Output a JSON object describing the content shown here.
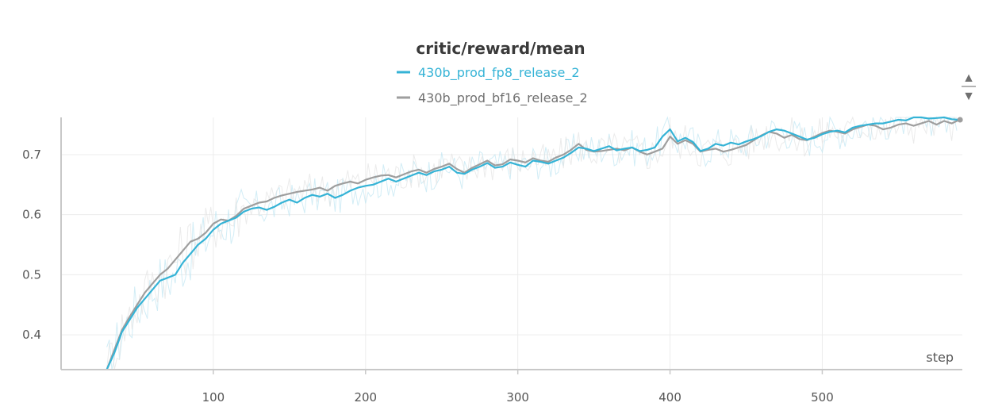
{
  "chart_data": {
    "type": "line",
    "title": "critic/reward/mean",
    "xlabel": "step",
    "ylabel": "",
    "xlim": [
      0,
      592
    ],
    "ylim": [
      0.342,
      0.762
    ],
    "xticks": [
      100,
      200,
      300,
      400,
      500
    ],
    "yticks": [
      0.4,
      0.5,
      0.6,
      0.7
    ],
    "grid": true,
    "legend_position": "top-center",
    "series": [
      {
        "name": "430b_prod_fp8_release_2",
        "color": "#35b3d6",
        "x": [
          30,
          35,
          40,
          45,
          50,
          55,
          60,
          65,
          70,
          75,
          80,
          85,
          90,
          95,
          100,
          105,
          110,
          115,
          120,
          125,
          130,
          135,
          140,
          145,
          150,
          155,
          160,
          165,
          170,
          175,
          180,
          185,
          190,
          195,
          200,
          205,
          210,
          215,
          220,
          225,
          230,
          235,
          240,
          245,
          250,
          255,
          260,
          265,
          270,
          275,
          280,
          285,
          290,
          295,
          300,
          305,
          310,
          315,
          320,
          325,
          330,
          335,
          340,
          345,
          350,
          355,
          360,
          365,
          370,
          375,
          380,
          385,
          390,
          395,
          400,
          405,
          410,
          415,
          420,
          425,
          430,
          435,
          440,
          445,
          450,
          455,
          460,
          465,
          470,
          475,
          480,
          485,
          490,
          495,
          500,
          505,
          510,
          515,
          520,
          525,
          530,
          535,
          540,
          545,
          550,
          555,
          560,
          565,
          570,
          575,
          580,
          585,
          590
        ],
        "values": [
          0.342,
          0.37,
          0.405,
          0.425,
          0.445,
          0.46,
          0.475,
          0.49,
          0.495,
          0.5,
          0.52,
          0.535,
          0.55,
          0.56,
          0.575,
          0.585,
          0.59,
          0.595,
          0.605,
          0.61,
          0.612,
          0.608,
          0.613,
          0.62,
          0.625,
          0.62,
          0.628,
          0.633,
          0.63,
          0.635,
          0.628,
          0.633,
          0.64,
          0.645,
          0.648,
          0.65,
          0.655,
          0.66,
          0.655,
          0.66,
          0.665,
          0.67,
          0.666,
          0.672,
          0.675,
          0.68,
          0.67,
          0.668,
          0.675,
          0.68,
          0.686,
          0.678,
          0.68,
          0.687,
          0.683,
          0.68,
          0.69,
          0.688,
          0.685,
          0.69,
          0.695,
          0.703,
          0.712,
          0.71,
          0.706,
          0.71,
          0.714,
          0.707,
          0.71,
          0.712,
          0.706,
          0.708,
          0.712,
          0.73,
          0.742,
          0.722,
          0.728,
          0.721,
          0.706,
          0.71,
          0.718,
          0.715,
          0.72,
          0.717,
          0.722,
          0.726,
          0.731,
          0.738,
          0.742,
          0.74,
          0.735,
          0.73,
          0.725,
          0.728,
          0.734,
          0.738,
          0.74,
          0.737,
          0.745,
          0.748,
          0.75,
          0.752,
          0.752,
          0.755,
          0.758,
          0.757,
          0.762,
          0.762,
          0.76,
          0.761,
          0.762,
          0.759,
          0.758
        ]
      },
      {
        "name": "430b_prod_bf16_release_2",
        "color": "#9e9e9e",
        "x": [
          30,
          35,
          40,
          45,
          50,
          55,
          60,
          65,
          70,
          75,
          80,
          85,
          90,
          95,
          100,
          105,
          110,
          115,
          120,
          125,
          130,
          135,
          140,
          145,
          150,
          155,
          160,
          165,
          170,
          175,
          180,
          185,
          190,
          195,
          200,
          205,
          210,
          215,
          220,
          225,
          230,
          235,
          240,
          245,
          250,
          255,
          260,
          265,
          270,
          275,
          280,
          285,
          290,
          295,
          300,
          305,
          310,
          315,
          320,
          325,
          330,
          335,
          340,
          345,
          350,
          355,
          360,
          365,
          370,
          375,
          380,
          385,
          390,
          395,
          400,
          405,
          410,
          415,
          420,
          425,
          430,
          435,
          440,
          445,
          450,
          455,
          460,
          465,
          470,
          475,
          480,
          485,
          490,
          495,
          500,
          505,
          510,
          515,
          520,
          525,
          530,
          535,
          540,
          545,
          550,
          555,
          560,
          565,
          570,
          575,
          580,
          585,
          590
        ],
        "values": [
          0.342,
          0.375,
          0.408,
          0.43,
          0.45,
          0.47,
          0.485,
          0.5,
          0.51,
          0.525,
          0.54,
          0.555,
          0.56,
          0.57,
          0.585,
          0.592,
          0.59,
          0.598,
          0.61,
          0.615,
          0.62,
          0.622,
          0.628,
          0.632,
          0.635,
          0.638,
          0.64,
          0.642,
          0.645,
          0.64,
          0.648,
          0.652,
          0.655,
          0.652,
          0.658,
          0.662,
          0.665,
          0.666,
          0.662,
          0.667,
          0.672,
          0.675,
          0.67,
          0.676,
          0.68,
          0.685,
          0.676,
          0.67,
          0.678,
          0.684,
          0.69,
          0.682,
          0.684,
          0.692,
          0.69,
          0.687,
          0.694,
          0.69,
          0.688,
          0.695,
          0.7,
          0.708,
          0.718,
          0.708,
          0.705,
          0.706,
          0.708,
          0.71,
          0.707,
          0.712,
          0.705,
          0.7,
          0.705,
          0.71,
          0.73,
          0.718,
          0.724,
          0.718,
          0.705,
          0.708,
          0.71,
          0.705,
          0.708,
          0.712,
          0.716,
          0.724,
          0.732,
          0.738,
          0.735,
          0.728,
          0.733,
          0.726,
          0.724,
          0.73,
          0.736,
          0.74,
          0.738,
          0.735,
          0.742,
          0.746,
          0.75,
          0.748,
          0.742,
          0.745,
          0.75,
          0.752,
          0.748,
          0.752,
          0.756,
          0.75,
          0.756,
          0.752,
          0.758
        ]
      }
    ]
  },
  "controls": {
    "scroll_up_icon": "triangle-up-icon",
    "scroll_down_icon": "triangle-down-icon",
    "scroll_up_symbol": "▲",
    "scroll_down_symbol": "▼"
  }
}
